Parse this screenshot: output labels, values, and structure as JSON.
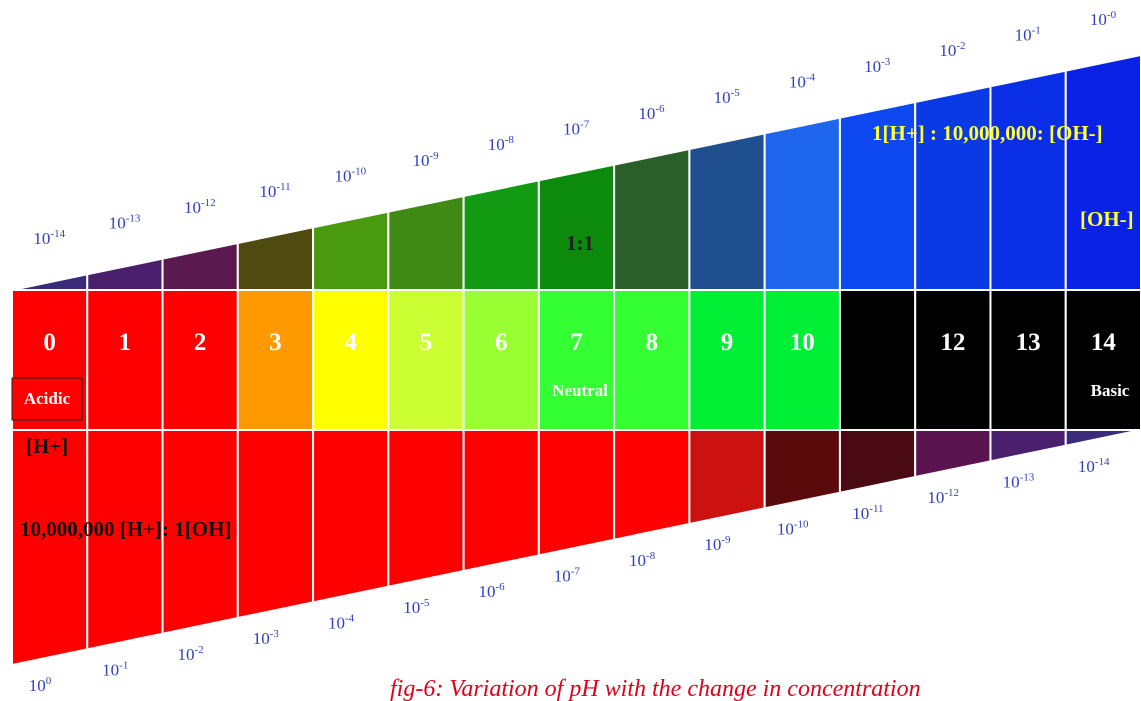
{
  "ph_values": [
    "0",
    "1",
    "2",
    "3",
    "4",
    "5",
    "6",
    "7",
    "8",
    "9",
    "10",
    "",
    "12",
    "13",
    "14"
  ],
  "colors": {
    "top": [
      "#3a2a7a",
      "#4a1f6e",
      "#5a1a50",
      "#4f4a10",
      "#4a9a10",
      "#3f8a14",
      "#139a13",
      "#0c8a0c",
      "#2a5f2a",
      "#1f4f8f",
      "#1f66ee",
      "#0e48f0",
      "#0a3ae6",
      "#0a2ee6",
      "#0a22e6"
    ],
    "middle": [
      "#ff0000",
      "#ff0000",
      "#ff0000",
      "#ff9900",
      "#ffff00",
      "#ccff33",
      "#99ff33",
      "#33ff33",
      "#33ff33",
      "#00ee33",
      "#00ee33",
      "#000000",
      "#000000",
      "#000000",
      "#000000"
    ],
    "bottom": [
      "#ff0000",
      "#ff0000",
      "#ff0000",
      "#ff0000",
      "#ff0000",
      "#ff0000",
      "#ff0000",
      "#ff0000",
      "#ff0000",
      "#cc1111",
      "#5a0a0a",
      "#4a0a14",
      "#5a1450",
      "#4a1f6e",
      "#3a2a7a"
    ],
    "tick": "#2f3fbf",
    "ratio_top": "#ffff33",
    "caption": "#e0001b"
  },
  "oh_exponents": [
    "-14",
    "-13",
    "-12",
    "-11",
    "-10",
    "-9",
    "-8",
    "-7",
    "-6",
    "-5",
    "-4",
    "-3",
    "-2",
    "-1",
    "-0"
  ],
  "h_exponents": [
    "0",
    "-1",
    "-2",
    "-3",
    "-4",
    "-5",
    "-6",
    "-7",
    "-8",
    "-9",
    "-10",
    "-11",
    "-12",
    "-13",
    "-14"
  ],
  "tick_base": "10",
  "labels": {
    "acidic": "Acidic",
    "neutral": "Neutral",
    "basic": "Basic",
    "h_ion": "[H+]",
    "oh_ion": "[OH-]",
    "neutral_ratio": "1:1",
    "acid_ratio": "10,000,000 [H+]: 1[OH]",
    "base_ratio": "1[H+] : 10,000,000: [OH-]"
  },
  "caption": "fig-6: Variation of pH with the change in concentration"
}
